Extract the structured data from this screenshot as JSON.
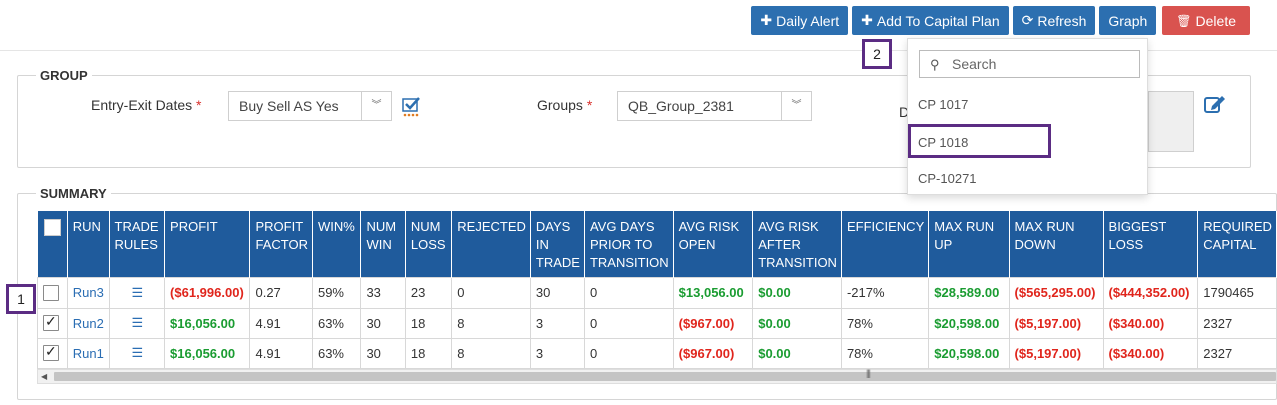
{
  "toolbar": {
    "daily_alert": "Daily Alert",
    "add_capital_plan": "Add To Capital Plan",
    "refresh": "Refresh",
    "graph": "Graph",
    "delete": "Delete"
  },
  "group": {
    "legend": "GROUP",
    "entry_exit_label": "Entry-Exit Dates",
    "entry_exit_value": "Buy Sell AS Yes",
    "groups_label": "Groups",
    "groups_value": "QB_Group_2381",
    "d_label": "D",
    "required_mark": "*"
  },
  "summary": {
    "legend": "SUMMARY",
    "columns": [
      "RUN",
      "TRADE RULES",
      "PROFIT",
      "PROFIT FACTOR",
      "WIN%",
      "NUM WIN",
      "NUM LOSS",
      "REJECTED",
      "DAYS IN TRADE",
      "AVG DAYS PRIOR TO TRANSITION",
      "AVG RISK OPEN",
      "AVG RISK AFTER TRANSITION",
      "EFFICIENCY",
      "MAX RUN UP",
      "MAX RUN DOWN",
      "BIGGEST LOSS",
      "REQUIRED CAPITAL"
    ],
    "rows": [
      {
        "checked": false,
        "run": "Run3",
        "profit": "($61,996.00)",
        "profit_factor": "0.27",
        "win_pct": "59%",
        "num_win": "33",
        "num_loss": "23",
        "rejected": "0",
        "days_in_trade": "30",
        "avg_days_prior": "0",
        "avg_risk_open": "$13,056.00",
        "avg_risk_after": "$0.00",
        "efficiency": "-217%",
        "max_run_up": "$28,589.00",
        "max_run_down": "($565,295.00)",
        "biggest_loss": "($444,352.00)",
        "required_capital": "1790465"
      },
      {
        "checked": true,
        "run": "Run2",
        "profit": "$16,056.00",
        "profit_factor": "4.91",
        "win_pct": "63%",
        "num_win": "30",
        "num_loss": "18",
        "rejected": "8",
        "days_in_trade": "3",
        "avg_days_prior": "0",
        "avg_risk_open": "($967.00)",
        "avg_risk_after": "$0.00",
        "efficiency": "78%",
        "max_run_up": "$20,598.00",
        "max_run_down": "($5,197.00)",
        "biggest_loss": "($340.00)",
        "required_capital": "2327"
      },
      {
        "checked": true,
        "run": "Run1",
        "profit": "$16,056.00",
        "profit_factor": "4.91",
        "win_pct": "63%",
        "num_win": "30",
        "num_loss": "18",
        "rejected": "8",
        "days_in_trade": "3",
        "avg_days_prior": "0",
        "avg_risk_open": "($967.00)",
        "avg_risk_after": "$0.00",
        "efficiency": "78%",
        "max_run_up": "$20,598.00",
        "max_run_down": "($5,197.00)",
        "biggest_loss": "($340.00)",
        "required_capital": "2327"
      }
    ]
  },
  "dropdown": {
    "search_placeholder": "Search",
    "options": [
      "CP 1017",
      "CP 1018",
      "CP-10271"
    ],
    "highlighted": "CP 1018"
  },
  "callouts": {
    "one": "1",
    "two": "2"
  },
  "colors": {
    "primary": "#2c6fb0",
    "header": "#1f5b9c",
    "danger": "#d9534f",
    "positive": "#1a9c31",
    "negative": "#e0251c",
    "callout": "#5b2c83"
  }
}
